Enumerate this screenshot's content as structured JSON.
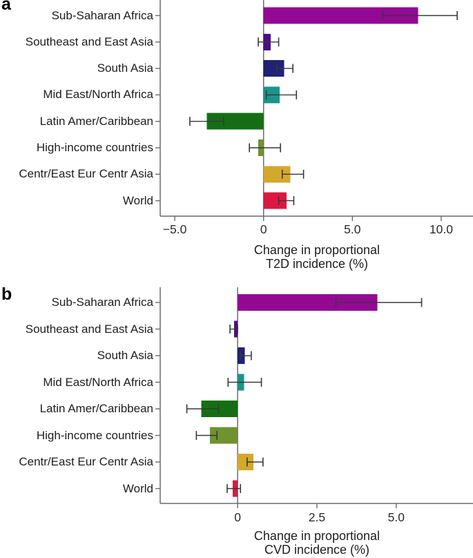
{
  "figure": {
    "description": "Two-panel horizontal bar chart with error bars comparing regional changes in proportional disease incidence",
    "background_color": "#ffffff",
    "axis_line_color": "#6a6a6a",
    "error_bar_color": "#383838",
    "text_color": "#1d1d1d"
  },
  "chart_data": [
    {
      "type": "bar",
      "orientation": "horizontal",
      "panel_label": "a",
      "title": "",
      "xlabel": "Change in proportional T2D incidence (%)",
      "xlabel_lines": [
        "Change in proportional",
        "T2D incidence (%)"
      ],
      "ylabel": "",
      "categories": [
        "Sub-Saharan Africa",
        "Southeast and East Asia",
        "South Asia",
        "Mid East/North Africa",
        "Latin Amer/Caribbean",
        "High-income countries",
        "Centr/East Eur Centr Asia",
        "World"
      ],
      "values": [
        8.7,
        0.4,
        1.15,
        0.9,
        -3.2,
        -0.3,
        1.5,
        1.3
      ],
      "ci_low": [
        6.7,
        -0.3,
        0.75,
        0.15,
        -4.15,
        -0.8,
        1.05,
        0.85
      ],
      "ci_high": [
        10.9,
        0.85,
        1.65,
        1.85,
        -2.25,
        0.95,
        2.25,
        1.7
      ],
      "colors": [
        "#940994",
        "#4C0E87",
        "#1F2276",
        "#1D938C",
        "#146F14",
        "#70922F",
        "#D4A82B",
        "#DC1743"
      ],
      "xticks": [
        -5,
        0,
        5,
        10
      ],
      "xtick_labels": [
        "−5.0",
        "0",
        "5.0",
        "10.0"
      ],
      "xlim": [
        -5.82,
        11.79
      ],
      "grid": false,
      "legend": null,
      "error_bars": true
    },
    {
      "type": "bar",
      "orientation": "horizontal",
      "panel_label": "b",
      "title": "",
      "xlabel": "Change in proportional CVD incidence (%)",
      "xlabel_lines": [
        "Change in proportional",
        "CVD incidence (%)"
      ],
      "ylabel": "",
      "categories": [
        "Sub-Saharan Africa",
        "Southeast and East Asia",
        "South Asia",
        "Mid East/North Africa",
        "Latin Amer/Caribbean",
        "High-income countries",
        "Centr/East Eur Centr Asia",
        "World"
      ],
      "values": [
        4.4,
        -0.11,
        0.23,
        0.2,
        -1.15,
        -0.87,
        0.5,
        -0.15
      ],
      "ci_low": [
        3.1,
        -0.24,
        0.09,
        -0.3,
        -1.6,
        -1.3,
        0.3,
        -0.33
      ],
      "ci_high": [
        5.8,
        0.0,
        0.43,
        0.75,
        -0.6,
        -0.65,
        0.8,
        0.09
      ],
      "colors": [
        "#940994",
        "#4C0E87",
        "#1F2276",
        "#1D938C",
        "#146F14",
        "#70922F",
        "#D4A82B",
        "#DC1743"
      ],
      "xticks": [
        0,
        2.5,
        5
      ],
      "xtick_labels": [
        "0",
        "2.5",
        "5.0"
      ],
      "xlim": [
        -2.44,
        7.42
      ],
      "grid": false,
      "legend": null,
      "error_bars": true
    }
  ]
}
